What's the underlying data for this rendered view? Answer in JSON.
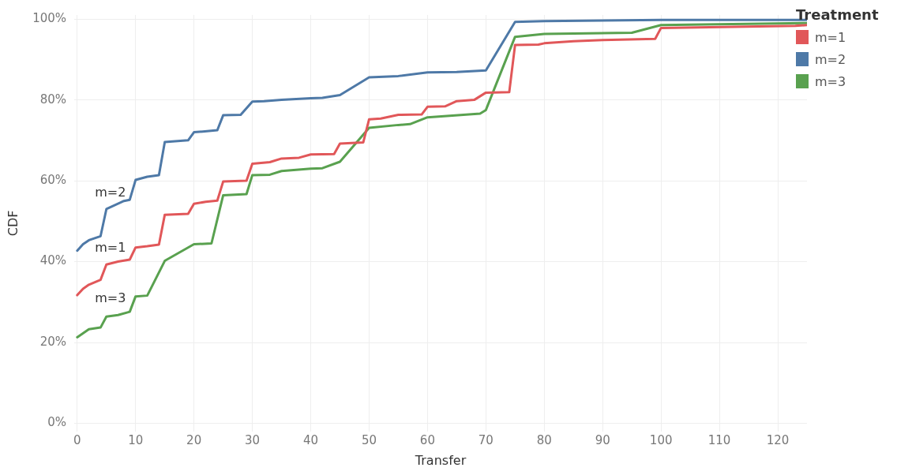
{
  "chart_data": {
    "type": "line",
    "xlabel": "Transfer",
    "ylabel": "CDF",
    "legend_title": "Treatment",
    "legend": "top right",
    "grid": true,
    "marker": "none",
    "line_style": "solid",
    "xlim": [
      -0.5,
      125
    ],
    "xticks": [
      0,
      10,
      20,
      30,
      40,
      50,
      60,
      70,
      80,
      90,
      100,
      110,
      120
    ],
    "ylim": [
      -2,
      101
    ],
    "yticks": [
      {
        "value": 0,
        "label": "0%"
      },
      {
        "value": 20,
        "label": "20%"
      },
      {
        "value": 40,
        "label": "40%"
      },
      {
        "value": 60,
        "label": "60%"
      },
      {
        "value": 80,
        "label": "80%"
      },
      {
        "value": 100,
        "label": "100%"
      }
    ],
    "series": [
      {
        "name": "m=1",
        "color": "#e15759",
        "x": [
          0,
          1,
          2,
          4,
          5,
          7,
          9,
          10,
          12,
          14,
          15,
          19,
          20,
          22,
          24,
          25,
          29,
          30,
          33,
          35,
          38,
          40,
          44,
          45,
          49,
          50,
          52,
          55,
          59,
          60,
          63,
          65,
          68,
          70,
          74,
          75,
          79,
          80,
          85,
          90,
          99,
          100,
          123,
          125
        ],
        "values": [
          31.7,
          33.3,
          34.3,
          35.5,
          39.3,
          40,
          40.5,
          43.5,
          43.8,
          44.2,
          51.6,
          51.8,
          54.3,
          54.8,
          55.1,
          59.8,
          60,
          64.2,
          64.6,
          65.5,
          65.7,
          66.5,
          66.6,
          69.2,
          69.5,
          75.2,
          75.4,
          76.3,
          76.4,
          78.3,
          78.4,
          79.7,
          80,
          81.8,
          81.9,
          93.6,
          93.7,
          94,
          94.5,
          94.8,
          95.1,
          97.8,
          98.3,
          98.5
        ]
      },
      {
        "name": "m=2",
        "color": "#4e79a7",
        "x": [
          0,
          1,
          2,
          4,
          5,
          8,
          9,
          10,
          12,
          14,
          15,
          19,
          20,
          24,
          25,
          28,
          30,
          32,
          35,
          40,
          42,
          45,
          50,
          55,
          60,
          65,
          70,
          75,
          80,
          100,
          125
        ],
        "values": [
          42.7,
          44.3,
          45.3,
          46.3,
          53,
          55,
          55.3,
          60.2,
          61,
          61.4,
          69.6,
          70,
          72,
          72.5,
          76.2,
          76.3,
          79.6,
          79.7,
          80,
          80.4,
          80.5,
          81.2,
          85.6,
          85.9,
          86.8,
          86.9,
          87.3,
          99.3,
          99.5,
          99.8,
          99.8
        ]
      },
      {
        "name": "m=3",
        "color": "#59a14f",
        "x": [
          0,
          2,
          4,
          5,
          7,
          9,
          10,
          12,
          15,
          20,
          23,
          25,
          29,
          30,
          33,
          35,
          40,
          42,
          45,
          50,
          55,
          57,
          60,
          69,
          70,
          75,
          80,
          95,
          100,
          125
        ],
        "values": [
          21.3,
          23.3,
          23.7,
          26.4,
          26.8,
          27.6,
          31.4,
          31.6,
          40.2,
          44.3,
          44.5,
          56.4,
          56.7,
          61.4,
          61.5,
          62.4,
          63,
          63.1,
          64.7,
          73.1,
          73.8,
          74,
          75.7,
          76.6,
          77.5,
          95.6,
          96.3,
          96.6,
          98.5,
          99
        ]
      }
    ],
    "annotations": [
      "m=1",
      "m=2",
      "m=3"
    ]
  }
}
